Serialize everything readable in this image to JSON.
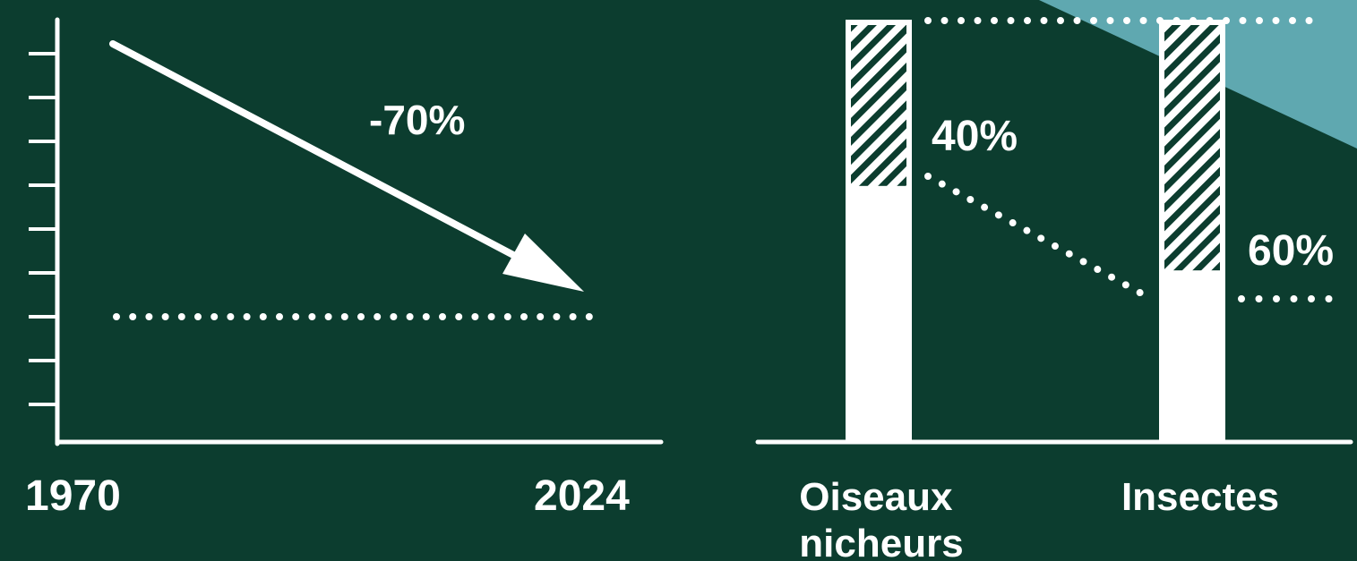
{
  "colors": {
    "background": "#0c3d2f",
    "foreground": "#ffffff",
    "accent": "#5fa8b0",
    "hatch": "#0c3d2f"
  },
  "chart_data": [
    {
      "type": "line",
      "x": [
        "1970",
        "2024"
      ],
      "change_label": "-70%",
      "reference_line": "dotted",
      "ticks": 9,
      "grid": false
    },
    {
      "type": "bar",
      "categories": [
        [
          "Oiseaux",
          "nicheurs"
        ],
        [
          "Insectes"
        ]
      ],
      "series": [
        {
          "values": [
            60,
            40
          ],
          "style": "solid-white"
        },
        {
          "values": [
            40,
            60
          ],
          "style": "hatched"
        }
      ],
      "labels": [
        "40%",
        "60%"
      ]
    }
  ]
}
